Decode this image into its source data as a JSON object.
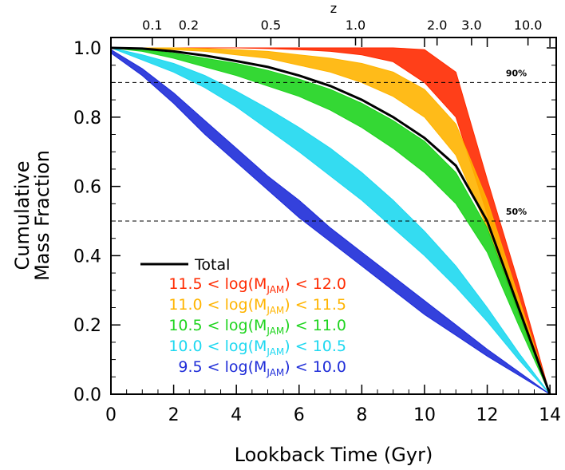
{
  "chart_data": {
    "type": "area",
    "title": "",
    "xlabel": "Lookback Time (Gyr)",
    "ylabel_lines": [
      "Cumulative",
      "Mass Fraction"
    ],
    "top_axis_label": "z",
    "xlim": [
      0,
      14.2
    ],
    "ylim": [
      0,
      1.03
    ],
    "x_ticks": [
      "0",
      "2",
      "4",
      "6",
      "8",
      "10",
      "12",
      "14"
    ],
    "y_ticks": [
      "0.0",
      "0.2",
      "0.4",
      "0.6",
      "0.8",
      "1.0"
    ],
    "top_ticks": [
      {
        "label": "0.1",
        "lookback": 1.32
      },
      {
        "label": "0.2",
        "lookback": 2.48
      },
      {
        "label": "0.5",
        "lookback": 5.1
      },
      {
        "label": "1.0",
        "lookback": 7.8
      },
      {
        "label": "2.0",
        "lookback": 10.4
      },
      {
        "label": "3.0",
        "lookback": 11.5
      },
      {
        "label": "10.0",
        "lookback": 13.3
      }
    ],
    "reference_lines": [
      {
        "y": 0.9,
        "label": "90%"
      },
      {
        "y": 0.5,
        "label": "50%"
      }
    ],
    "x": [
      0,
      1,
      2,
      3,
      4,
      5,
      6,
      7,
      8,
      9,
      10,
      11,
      12,
      13,
      14
    ],
    "series": [
      {
        "label_parts": [
          "11.5 < log(M",
          "JAM",
          ") < 12.0"
        ],
        "color": "#ff2a00",
        "upper": [
          1.0,
          1.0,
          1.0,
          1.0,
          1.0,
          1.0,
          1.0,
          1.0,
          1.0,
          1.0,
          0.995,
          0.93,
          0.62,
          0.32,
          0.0
        ],
        "lower": [
          1.0,
          1.0,
          1.0,
          1.0,
          1.0,
          0.998,
          0.995,
          0.99,
          0.98,
          0.96,
          0.9,
          0.8,
          0.52,
          0.26,
          0.0
        ]
      },
      {
        "label_parts": [
          "11.0 < log(M",
          "JAM",
          ") < 11.5"
        ],
        "color": "#ffb400",
        "upper": [
          1.0,
          1.0,
          1.0,
          0.998,
          0.995,
          0.99,
          0.98,
          0.97,
          0.955,
          0.93,
          0.88,
          0.78,
          0.56,
          0.28,
          0.0
        ],
        "lower": [
          1.0,
          1.0,
          0.995,
          0.99,
          0.98,
          0.97,
          0.95,
          0.93,
          0.9,
          0.86,
          0.8,
          0.69,
          0.48,
          0.23,
          0.0
        ]
      },
      {
        "label_parts": [
          "10.5 < log(M",
          "JAM",
          ") < 11.0"
        ],
        "color": "#1ed41e",
        "upper": [
          1.0,
          0.995,
          0.985,
          0.97,
          0.955,
          0.935,
          0.91,
          0.88,
          0.84,
          0.79,
          0.73,
          0.64,
          0.48,
          0.24,
          0.0
        ],
        "lower": [
          1.0,
          0.99,
          0.97,
          0.945,
          0.92,
          0.89,
          0.86,
          0.82,
          0.77,
          0.71,
          0.64,
          0.55,
          0.41,
          0.2,
          0.0
        ]
      },
      {
        "label_parts": [
          "10.0 < log(M",
          "JAM",
          ") < 10.5"
        ],
        "color": "#1ed8f0",
        "upper": [
          1.0,
          0.98,
          0.955,
          0.92,
          0.875,
          0.825,
          0.77,
          0.71,
          0.64,
          0.56,
          0.47,
          0.37,
          0.25,
          0.12,
          0.0
        ],
        "lower": [
          1.0,
          0.965,
          0.93,
          0.885,
          0.83,
          0.765,
          0.7,
          0.63,
          0.56,
          0.48,
          0.4,
          0.31,
          0.21,
          0.1,
          0.0
        ]
      },
      {
        "label_parts": [
          "9.5 < log(M",
          "JAM",
          ") < 10.0"
        ],
        "color": "#1e2cd8",
        "upper": [
          0.995,
          0.94,
          0.87,
          0.79,
          0.71,
          0.63,
          0.56,
          0.48,
          0.41,
          0.34,
          0.27,
          0.2,
          0.13,
          0.065,
          0.0
        ],
        "lower": [
          0.985,
          0.92,
          0.84,
          0.75,
          0.67,
          0.59,
          0.51,
          0.44,
          0.37,
          0.3,
          0.23,
          0.17,
          0.11,
          0.055,
          0.0
        ]
      }
    ],
    "total": {
      "label": "Total",
      "color": "#000000",
      "values": [
        1.0,
        0.998,
        0.99,
        0.978,
        0.962,
        0.945,
        0.92,
        0.89,
        0.85,
        0.8,
        0.74,
        0.66,
        0.5,
        0.25,
        0.0
      ]
    },
    "grid": false,
    "legend_position": "bottom-left"
  }
}
